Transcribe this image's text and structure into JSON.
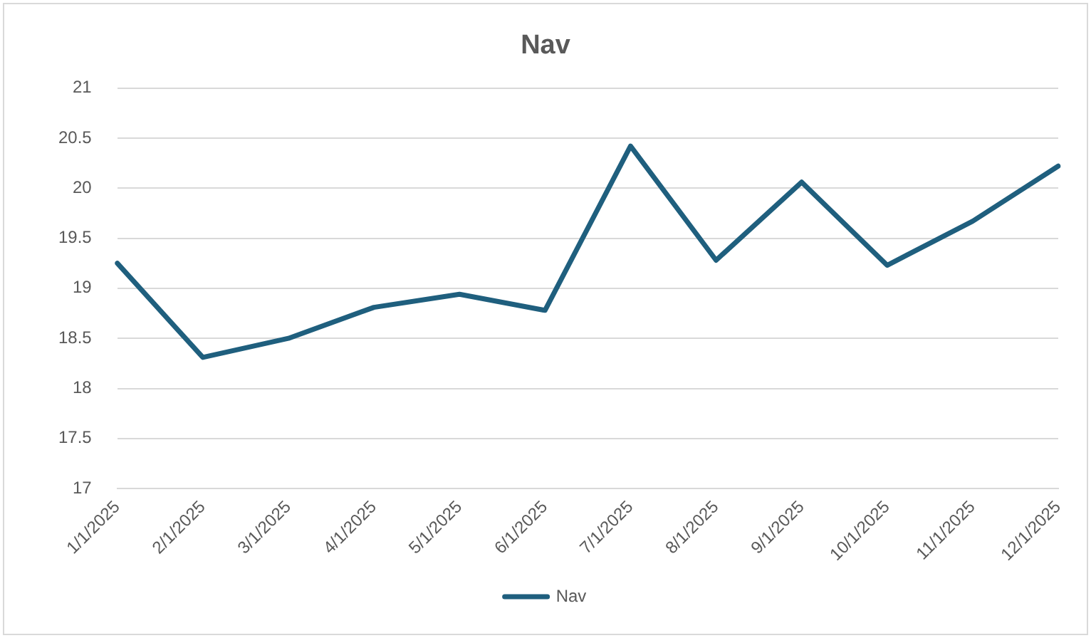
{
  "chart_data": {
    "type": "line",
    "title": "Nav",
    "categories": [
      "1/1/2025",
      "2/1/2025",
      "3/1/2025",
      "4/1/2025",
      "5/1/2025",
      "6/1/2025",
      "7/1/2025",
      "8/1/2025",
      "9/1/2025",
      "10/1/2025",
      "11/1/2025",
      "12/1/2025"
    ],
    "series": [
      {
        "name": "Nav",
        "color": "#1f5f7e",
        "values": [
          19.25,
          18.31,
          18.5,
          18.81,
          18.94,
          18.78,
          20.42,
          19.28,
          20.06,
          19.23,
          19.67,
          20.22
        ]
      }
    ],
    "ylim": [
      17,
      21
    ],
    "yticks": [
      17,
      17.5,
      18,
      18.5,
      19,
      19.5,
      20,
      20.5,
      21
    ],
    "grid": "y",
    "legend": "bottom",
    "marker": "none",
    "line_style": "solid"
  }
}
